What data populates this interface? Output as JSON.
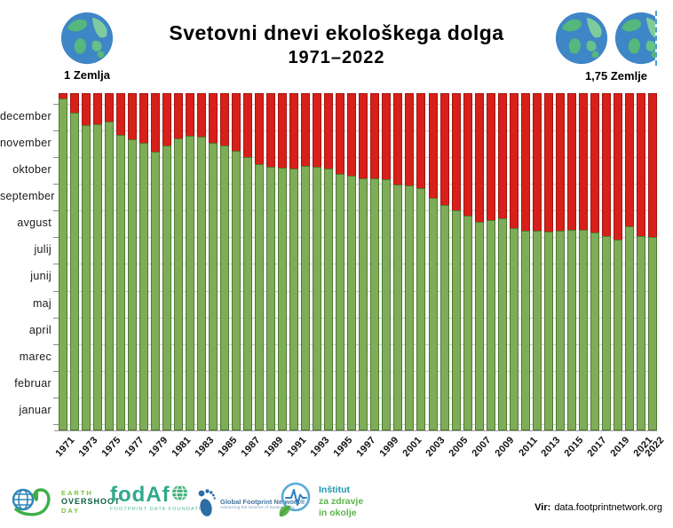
{
  "header": {
    "title": "Svetovni dnevi ekološkega dolga",
    "subtitle": "1971–2022",
    "left_earth_label": "1 Zemlja",
    "right_earth_label": "1,75 Zemlje"
  },
  "chart_data": {
    "type": "bar",
    "title": "Svetovni dnevi ekološkega dolga 1971–2022",
    "xlabel": "",
    "ylabel": "",
    "y_axis_month_labels": [
      "januar",
      "februar",
      "marec",
      "april",
      "maj",
      "junij",
      "julij",
      "avgust",
      "september",
      "oktober",
      "november",
      "december"
    ],
    "x_tick_labels": [
      "1971",
      "1973",
      "1975",
      "1977",
      "1979",
      "1981",
      "1983",
      "1985",
      "1987",
      "1989",
      "1991",
      "1993",
      "1995",
      "1997",
      "1999",
      "2001",
      "2003",
      "2005",
      "2007",
      "2009",
      "2011",
      "2013",
      "2015",
      "2017",
      "2019",
      "2021",
      "2022"
    ],
    "ylim_days": [
      0,
      365
    ],
    "grid": "horizontal month boundaries",
    "legend": "none (green = days within yearly biocapacity, red = ecological debt days to year end)",
    "series": [
      {
        "name": "overshoot-day-of-year (green bar height, days)",
        "x_years": [
          1971,
          1972,
          1973,
          1974,
          1975,
          1976,
          1977,
          1978,
          1979,
          1980,
          1981,
          1982,
          1983,
          1984,
          1985,
          1986,
          1987,
          1988,
          1989,
          1990,
          1991,
          1992,
          1993,
          1994,
          1995,
          1996,
          1997,
          1998,
          1999,
          2000,
          2001,
          2002,
          2003,
          2004,
          2005,
          2006,
          2007,
          2008,
          2009,
          2010,
          2011,
          2012,
          2013,
          2014,
          2015,
          2016,
          2017,
          2018,
          2019,
          2020,
          2021,
          2022
        ],
        "values": [
          359,
          345,
          330,
          331,
          334,
          321,
          315,
          311,
          302,
          309,
          316,
          319,
          318,
          312,
          308,
          303,
          296,
          289,
          285,
          284,
          283,
          287,
          285,
          283,
          278,
          276,
          273,
          273,
          272,
          267,
          265,
          262,
          252,
          245,
          238,
          232,
          226,
          228,
          230,
          219,
          216,
          217,
          215,
          216,
          217,
          218,
          214,
          210,
          207,
          222,
          210,
          209
        ],
        "overshoot_dates": [
          "25. december",
          "10. december",
          "26. november",
          "27. november",
          "30. november",
          "16. november",
          "11. november",
          "7. november",
          "29. oktober",
          "4. november",
          "12. november",
          "15. november",
          "14. november",
          "7. november",
          "4. november",
          "30. oktober",
          "23. oktober",
          "15. oktober",
          "12. oktober",
          "11. oktober",
          "10. oktober",
          "13. oktober",
          "12. oktober",
          "10. oktober",
          "5. oktober",
          "2. oktober",
          "30. september",
          "30. september",
          "29. september",
          "23. september",
          "22. september",
          "19. september",
          "9. september",
          "1. september",
          "26. avgust",
          "20. avgust",
          "14. avgust",
          "15. avgust",
          "18. avgust",
          "7. avgust",
          "4. avgust",
          "4. avgust",
          "3. avgust",
          "4. avgust",
          "5. avgust",
          "5. avgust",
          "2. avgust",
          "29. julij",
          "26. julij",
          "9. avgust",
          "29. julij",
          "28. julij"
        ]
      }
    ],
    "colors": {
      "green_fill": "#7fad57",
      "green_border": "#4c7a33",
      "red_fill": "#d7201a",
      "red_border": "#a31510",
      "gridline": "#cdcdcd",
      "earth_ocean": "#3e86c6",
      "earth_land": "#55b77c"
    }
  },
  "footer": {
    "eod_logo": {
      "line1": "EARTH",
      "line2": "OVERSHOOT",
      "line3": "DAY"
    },
    "fodafo_logo": {
      "word": "fodAf",
      "subtext": "FOOTPRINT DATA FOUNDATION"
    },
    "gfn_logo": {
      "name": "Global Footprint Network®",
      "tagline": "Advancing the Science of Sustainability"
    },
    "izo_logo": {
      "line1": "Inštitut",
      "line2": "za zdravje",
      "line3": "in okolje"
    },
    "source_label": "Vir:",
    "source_value": "data.footprintnetwork.org"
  }
}
